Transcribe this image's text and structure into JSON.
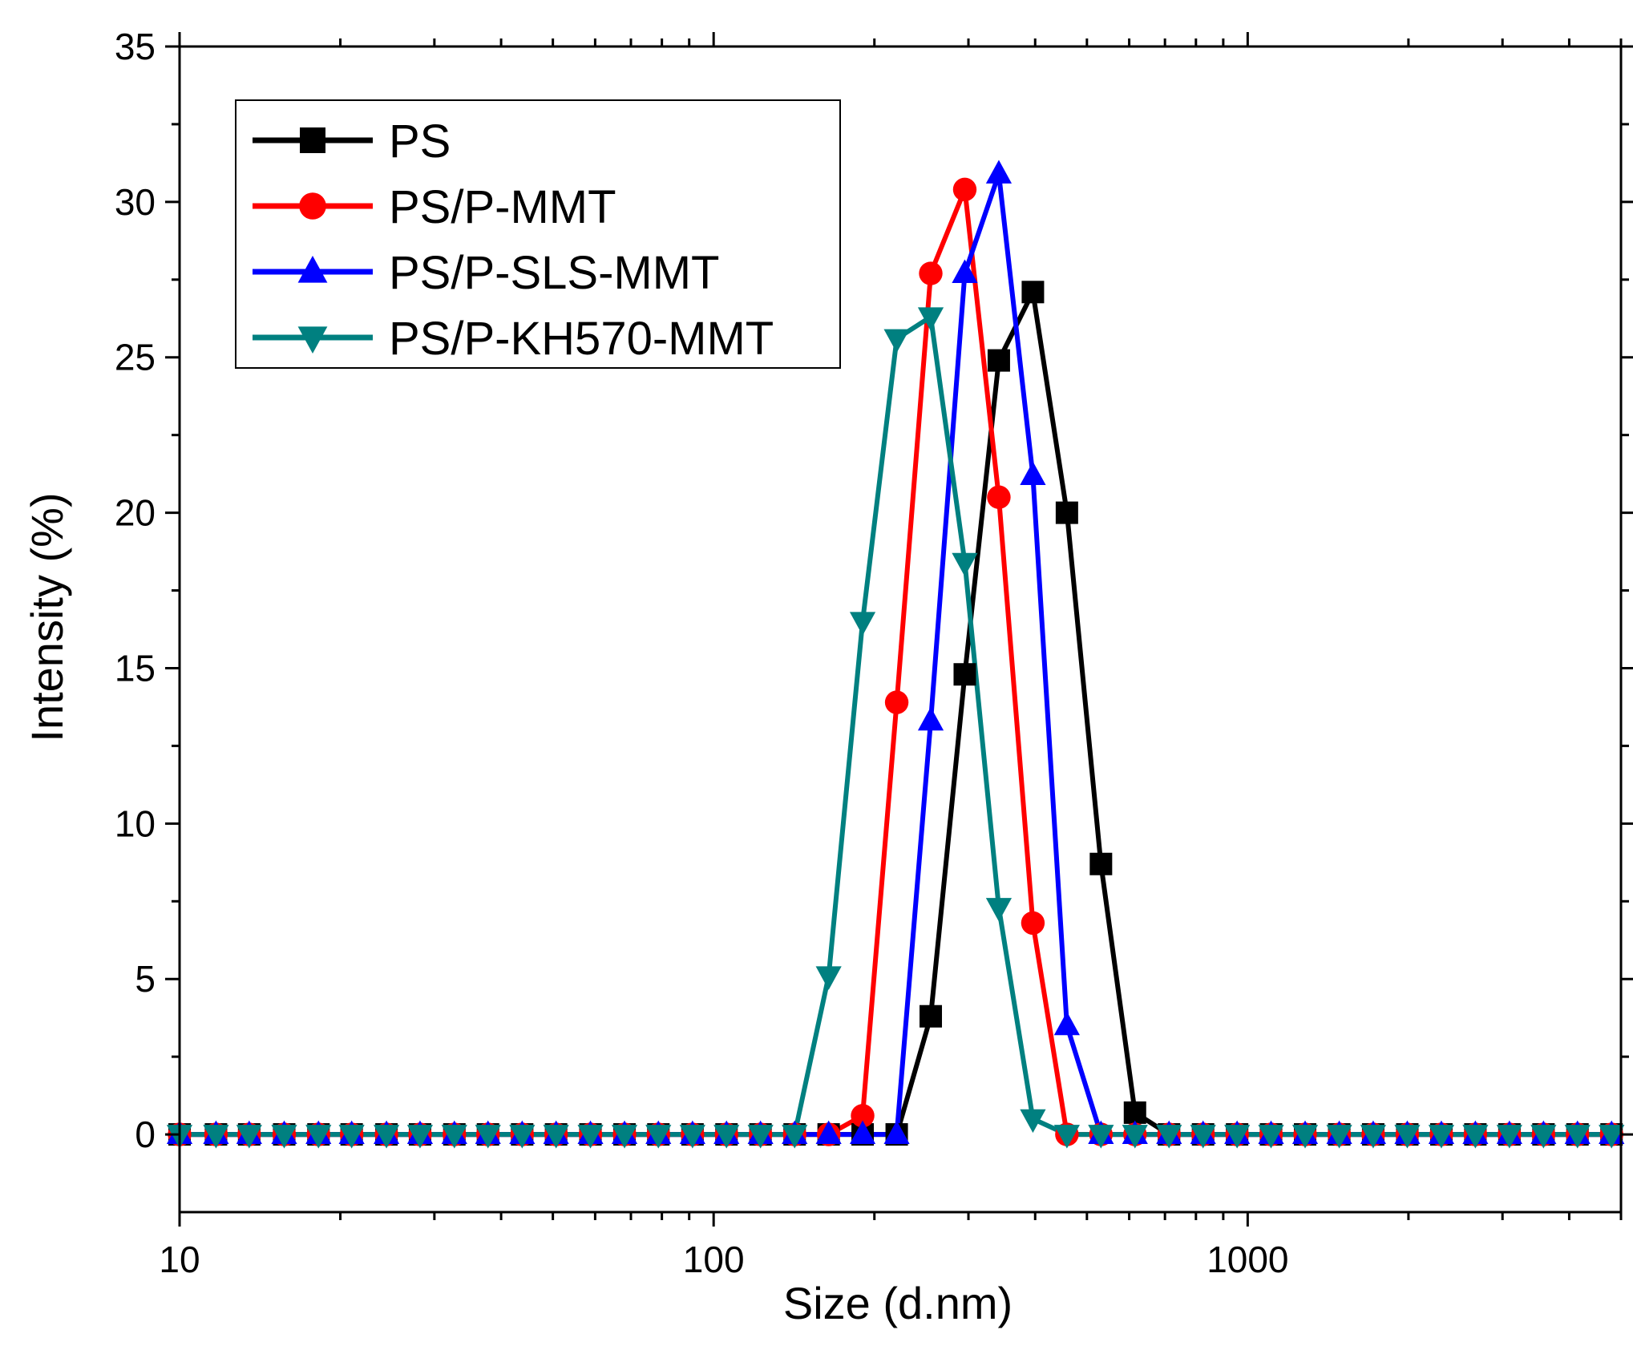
{
  "chart_data": {
    "type": "line",
    "title": "",
    "xlabel": "Size (d.nm)",
    "ylabel": "Intensity (%)",
    "xscale": "log",
    "xlim": [
      10,
      5000
    ],
    "ylim": [
      -2.5,
      35
    ],
    "x_ticks": [
      10,
      100,
      1000
    ],
    "x_tick_labels": [
      "10",
      "100",
      "1000"
    ],
    "y_ticks": [
      0,
      5,
      10,
      15,
      20,
      25,
      30,
      35
    ],
    "y_tick_labels": [
      "0",
      "5",
      "10",
      "15",
      "20",
      "25",
      "30",
      "35"
    ],
    "legend_position": "top-left",
    "x": [
      10,
      11.7,
      13.5,
      15.7,
      18.2,
      21.0,
      24.4,
      28.2,
      32.7,
      37.8,
      43.8,
      50.7,
      58.8,
      68.1,
      78.8,
      91.3,
      105.7,
      122.4,
      141.8,
      164.2,
      190.1,
      220.2,
      255.0,
      295.3,
      342.0,
      396.1,
      458.7,
      531.2,
      615.1,
      712.4,
      825.0,
      955.4,
      1106,
      1281,
      1484,
      1718,
      1990,
      2305,
      2669,
      3091,
      3580,
      4145,
      4801
    ],
    "series": [
      {
        "name": "PS",
        "color": "#000000",
        "marker": "square",
        "values": [
          0,
          0,
          0,
          0,
          0,
          0,
          0,
          0,
          0,
          0,
          0,
          0,
          0,
          0,
          0,
          0,
          0,
          0,
          0,
          0,
          0,
          0,
          3.8,
          14.8,
          24.9,
          27.1,
          20.0,
          8.7,
          0.7,
          0,
          0,
          0,
          0,
          0,
          0,
          0,
          0,
          0,
          0,
          0,
          0,
          0,
          0
        ]
      },
      {
        "name": "PS/P-MMT",
        "color": "#ff0000",
        "marker": "circle",
        "values": [
          0,
          0,
          0,
          0,
          0,
          0,
          0,
          0,
          0,
          0,
          0,
          0,
          0,
          0,
          0,
          0,
          0,
          0,
          0,
          0,
          0.6,
          13.9,
          27.7,
          30.4,
          20.5,
          6.8,
          0,
          0,
          0,
          0,
          0,
          0,
          0,
          0,
          0,
          0,
          0,
          0,
          0,
          0,
          0,
          0,
          0
        ]
      },
      {
        "name": "PS/P-SLS-MMT",
        "color": "#0000ff",
        "marker": "triangle-up",
        "values": [
          0,
          0,
          0,
          0,
          0,
          0,
          0,
          0,
          0,
          0,
          0,
          0,
          0,
          0,
          0,
          0,
          0,
          0,
          0,
          0,
          0,
          0,
          13.3,
          27.7,
          30.9,
          21.2,
          3.5,
          0,
          0,
          0,
          0,
          0,
          0,
          0,
          0,
          0,
          0,
          0,
          0,
          0,
          0,
          0,
          0
        ]
      },
      {
        "name": "PS/P-KH570-MMT",
        "color": "#008080",
        "marker": "triangle-down",
        "values": [
          0,
          0,
          0,
          0,
          0,
          0,
          0,
          0,
          0,
          0,
          0,
          0,
          0,
          0,
          0,
          0,
          0,
          0,
          0,
          5.1,
          16.5,
          25.6,
          26.3,
          18.4,
          7.3,
          0.5,
          0,
          0,
          0,
          0,
          0,
          0,
          0,
          0,
          0,
          0,
          0,
          0,
          0,
          0,
          0,
          0,
          0
        ]
      }
    ]
  }
}
